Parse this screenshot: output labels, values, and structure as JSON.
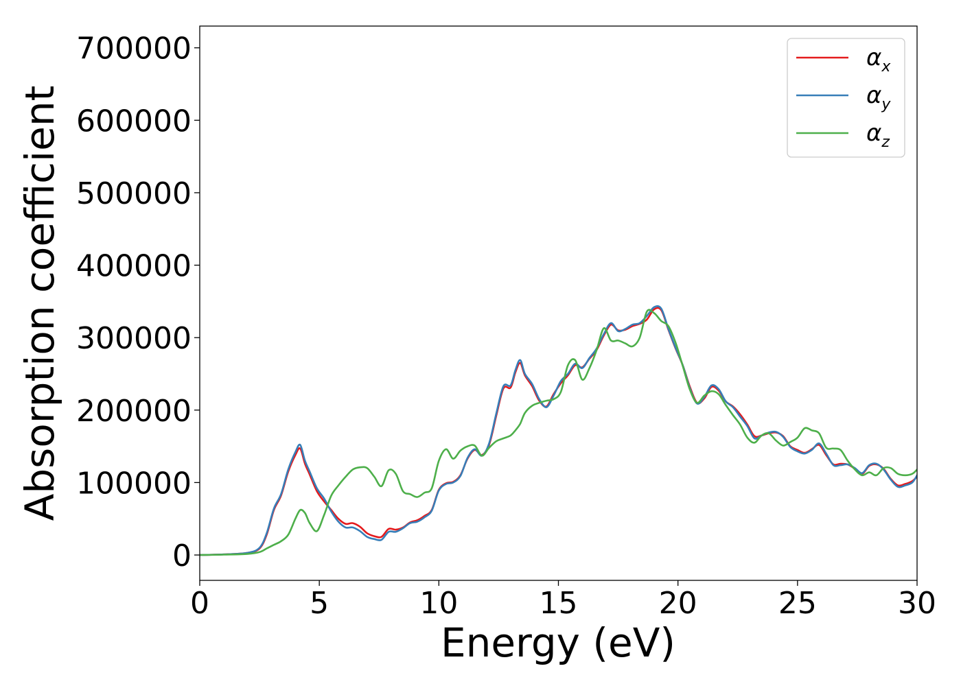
{
  "chart_data": {
    "type": "line",
    "title": "",
    "xlabel": "Energy (eV)",
    "ylabel": "Absorption coefficient",
    "xlim": [
      0,
      30
    ],
    "ylim": [
      -35000,
      730000
    ],
    "xticks": [
      0,
      5,
      10,
      15,
      20,
      25,
      30
    ],
    "yticks": [
      0,
      100000,
      200000,
      300000,
      400000,
      500000,
      600000,
      700000
    ],
    "grid": false,
    "legend_position": "top-right",
    "series": [
      {
        "name": "αx",
        "name_base": "α",
        "name_sub": "x",
        "color": "#e41a1c",
        "x": [
          0,
          1,
          2,
          2.5,
          2.8,
          3.1,
          3.4,
          3.7,
          4.0,
          4.2,
          4.4,
          4.6,
          4.9,
          5.2,
          5.5,
          5.8,
          6.1,
          6.4,
          6.7,
          7.0,
          7.3,
          7.6,
          7.9,
          8.2,
          8.5,
          8.8,
          9.1,
          9.4,
          9.7,
          10.0,
          10.3,
          10.6,
          10.9,
          11.2,
          11.5,
          11.8,
          12.1,
          12.4,
          12.7,
          13.0,
          13.2,
          13.4,
          13.6,
          13.9,
          14.2,
          14.5,
          14.8,
          15.1,
          15.4,
          15.7,
          16.0,
          16.3,
          16.6,
          16.9,
          17.2,
          17.5,
          17.8,
          18.1,
          18.4,
          18.7,
          19.0,
          19.3,
          19.6,
          19.9,
          20.2,
          20.5,
          20.8,
          21.1,
          21.4,
          21.7,
          22.0,
          22.3,
          22.6,
          22.9,
          23.2,
          23.5,
          23.8,
          24.1,
          24.4,
          24.7,
          25.0,
          25.3,
          25.6,
          25.9,
          26.2,
          26.5,
          26.8,
          27.1,
          27.4,
          27.7,
          28.0,
          28.3,
          28.6,
          28.9,
          29.2,
          29.5,
          29.8,
          30.0
        ],
        "y": [
          0,
          800,
          3000,
          9000,
          28000,
          62000,
          82000,
          115000,
          138000,
          147000,
          126000,
          111000,
          88000,
          74000,
          62000,
          50000,
          43000,
          44000,
          39000,
          30000,
          26000,
          25000,
          36000,
          35000,
          38000,
          45000,
          48000,
          54000,
          62000,
          90000,
          99000,
          101000,
          110000,
          133000,
          145000,
          138000,
          152000,
          192000,
          230000,
          231000,
          252000,
          265000,
          248000,
          233000,
          213000,
          205000,
          222000,
          237000,
          248000,
          262000,
          259000,
          271000,
          283000,
          303000,
          318000,
          310000,
          311000,
          316000,
          319000,
          325000,
          339000,
          338000,
          311000,
          285000,
          262000,
          232000,
          210000,
          216000,
          232000,
          227000,
          212000,
          205000,
          194000,
          180000,
          164000,
          165000,
          168000,
          169000,
          164000,
          150000,
          145000,
          141000,
          146000,
          152000,
          138000,
          125000,
          126000,
          125000,
          119000,
          112000,
          123000,
          125000,
          119000,
          105000,
          96000,
          98000,
          102000,
          108000
        ]
      },
      {
        "name": "αy",
        "name_base": "α",
        "name_sub": "y",
        "color": "#377eb8",
        "x": [
          0,
          1,
          2,
          2.5,
          2.8,
          3.1,
          3.4,
          3.7,
          4.0,
          4.2,
          4.4,
          4.6,
          4.9,
          5.2,
          5.5,
          5.8,
          6.1,
          6.4,
          6.7,
          7.0,
          7.3,
          7.6,
          7.9,
          8.2,
          8.5,
          8.8,
          9.1,
          9.4,
          9.7,
          10.0,
          10.3,
          10.6,
          10.9,
          11.2,
          11.5,
          11.8,
          12.1,
          12.4,
          12.7,
          13.0,
          13.2,
          13.4,
          13.6,
          13.9,
          14.2,
          14.5,
          14.8,
          15.1,
          15.4,
          15.7,
          16.0,
          16.3,
          16.6,
          16.9,
          17.2,
          17.5,
          17.8,
          18.1,
          18.4,
          18.7,
          19.0,
          19.3,
          19.6,
          19.9,
          20.2,
          20.5,
          20.8,
          21.1,
          21.4,
          21.7,
          22.0,
          22.3,
          22.6,
          22.9,
          23.2,
          23.5,
          23.8,
          24.1,
          24.4,
          24.7,
          25.0,
          25.3,
          25.6,
          25.9,
          26.2,
          26.5,
          26.8,
          27.1,
          27.4,
          27.7,
          28.0,
          28.3,
          28.6,
          28.9,
          29.2,
          29.5,
          29.8,
          30.0
        ],
        "y": [
          0,
          800,
          3000,
          10000,
          30000,
          64000,
          84000,
          118000,
          142000,
          152000,
          130000,
          115000,
          92000,
          78000,
          60000,
          46000,
          38000,
          38000,
          33000,
          25000,
          22000,
          21000,
          32000,
          32000,
          37000,
          44000,
          46000,
          52000,
          61000,
          89000,
          98000,
          100000,
          109000,
          134000,
          146000,
          137000,
          154000,
          195000,
          233000,
          234000,
          255000,
          269000,
          250000,
          236000,
          215000,
          204000,
          220000,
          240000,
          250000,
          264000,
          258000,
          272000,
          285000,
          305000,
          320000,
          309000,
          312000,
          318000,
          320000,
          330000,
          342000,
          340000,
          312000,
          286000,
          262000,
          230000,
          209000,
          218000,
          234000,
          229000,
          212000,
          204000,
          191000,
          178000,
          161000,
          165000,
          169000,
          170000,
          163000,
          149000,
          143000,
          140000,
          145000,
          154000,
          140000,
          124000,
          124000,
          125000,
          120000,
          113000,
          124000,
          126000,
          118000,
          104000,
          94000,
          96000,
          100000,
          110000
        ]
      },
      {
        "name": "αz",
        "name_base": "α",
        "name_sub": "z",
        "color": "#4daf4a",
        "x": [
          0,
          1,
          2,
          2.5,
          2.8,
          3.1,
          3.4,
          3.7,
          4.0,
          4.2,
          4.4,
          4.6,
          4.9,
          5.2,
          5.5,
          5.8,
          6.1,
          6.4,
          6.7,
          7.0,
          7.3,
          7.6,
          7.9,
          8.2,
          8.5,
          8.8,
          9.1,
          9.4,
          9.7,
          10.0,
          10.3,
          10.6,
          10.9,
          11.2,
          11.5,
          11.8,
          12.1,
          12.4,
          12.7,
          13.0,
          13.2,
          13.4,
          13.6,
          13.9,
          14.2,
          14.5,
          14.8,
          15.1,
          15.4,
          15.7,
          16.0,
          16.3,
          16.6,
          16.9,
          17.2,
          17.5,
          17.8,
          18.1,
          18.4,
          18.7,
          19.0,
          19.3,
          19.6,
          19.9,
          20.2,
          20.5,
          20.8,
          21.1,
          21.4,
          21.7,
          22.0,
          22.3,
          22.6,
          22.9,
          23.2,
          23.5,
          23.8,
          24.1,
          24.4,
          24.7,
          25.0,
          25.3,
          25.6,
          25.9,
          26.2,
          26.5,
          26.8,
          27.1,
          27.4,
          27.7,
          28.0,
          28.3,
          28.6,
          28.9,
          29.2,
          29.5,
          29.8,
          30.0
        ],
        "y": [
          0,
          500,
          1500,
          4000,
          9000,
          14000,
          19000,
          28000,
          50000,
          62000,
          58000,
          44000,
          33000,
          55000,
          82000,
          96000,
          108000,
          118000,
          121000,
          120000,
          108000,
          95000,
          117000,
          112000,
          88000,
          84000,
          80000,
          86000,
          92000,
          130000,
          146000,
          133000,
          144000,
          150000,
          151000,
          137000,
          148000,
          157000,
          161000,
          165000,
          172000,
          181000,
          196000,
          206000,
          210000,
          213000,
          215000,
          225000,
          262000,
          269000,
          242000,
          258000,
          283000,
          313000,
          296000,
          296000,
          292000,
          288000,
          300000,
          336000,
          334000,
          323000,
          316000,
          293000,
          261000,
          228000,
          210000,
          220000,
          226000,
          222000,
          207000,
          193000,
          180000,
          162000,
          155000,
          165000,
          168000,
          158000,
          151000,
          156000,
          162000,
          175000,
          172000,
          168000,
          148000,
          147000,
          145000,
          130000,
          118000,
          110000,
          114000,
          110000,
          120000,
          120000,
          112000,
          110000,
          112000,
          118000
        ]
      }
    ]
  }
}
